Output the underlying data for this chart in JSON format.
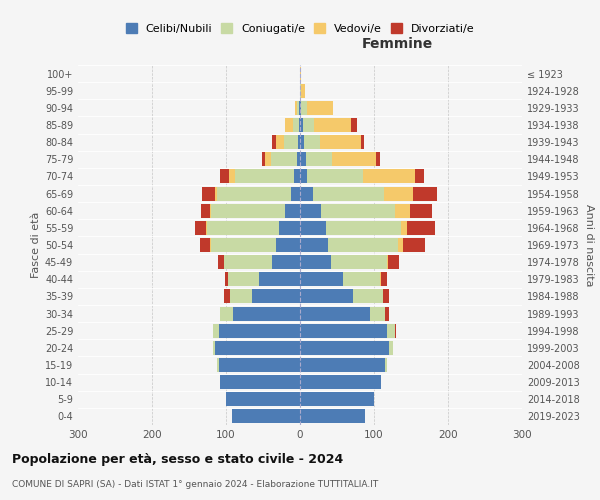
{
  "age_groups": [
    "0-4",
    "5-9",
    "10-14",
    "15-19",
    "20-24",
    "25-29",
    "30-34",
    "35-39",
    "40-44",
    "45-49",
    "50-54",
    "55-59",
    "60-64",
    "65-69",
    "70-74",
    "75-79",
    "80-84",
    "85-89",
    "90-94",
    "95-99",
    "100+"
  ],
  "birth_years": [
    "2019-2023",
    "2014-2018",
    "2009-2013",
    "2004-2008",
    "1999-2003",
    "1994-1998",
    "1989-1993",
    "1984-1988",
    "1979-1983",
    "1974-1978",
    "1969-1973",
    "1964-1968",
    "1959-1963",
    "1954-1958",
    "1949-1953",
    "1944-1948",
    "1939-1943",
    "1934-1938",
    "1929-1933",
    "1924-1928",
    "≤ 1923"
  ],
  "colors": {
    "celibi": "#4d7cb5",
    "coniugati": "#c8daa4",
    "vedovi": "#f5c96a",
    "divorziati": "#c0392b"
  },
  "males": {
    "celibi": [
      92,
      100,
      108,
      110,
      115,
      110,
      90,
      65,
      55,
      38,
      32,
      28,
      20,
      12,
      8,
      4,
      3,
      2,
      1,
      0,
      0
    ],
    "coniugati": [
      0,
      0,
      0,
      2,
      3,
      8,
      18,
      30,
      42,
      65,
      88,
      98,
      100,
      100,
      80,
      35,
      18,
      8,
      3,
      0,
      0
    ],
    "vedovi": [
      0,
      0,
      0,
      0,
      0,
      0,
      0,
      0,
      0,
      0,
      1,
      1,
      2,
      3,
      8,
      8,
      12,
      10,
      3,
      0,
      0
    ],
    "divorziati": [
      0,
      0,
      0,
      0,
      0,
      0,
      0,
      8,
      5,
      8,
      14,
      15,
      12,
      18,
      12,
      4,
      5,
      0,
      0,
      0,
      0
    ]
  },
  "females": {
    "celibi": [
      88,
      100,
      110,
      115,
      120,
      118,
      95,
      72,
      58,
      42,
      38,
      35,
      28,
      18,
      10,
      8,
      5,
      4,
      2,
      0,
      0
    ],
    "coniugati": [
      0,
      0,
      0,
      2,
      5,
      10,
      20,
      40,
      50,
      75,
      95,
      102,
      100,
      95,
      75,
      35,
      22,
      15,
      8,
      2,
      0
    ],
    "vedovi": [
      0,
      0,
      0,
      0,
      0,
      0,
      0,
      0,
      1,
      2,
      6,
      8,
      20,
      40,
      70,
      60,
      55,
      50,
      35,
      5,
      1
    ],
    "divorziati": [
      0,
      0,
      0,
      0,
      0,
      2,
      5,
      8,
      8,
      15,
      30,
      38,
      30,
      32,
      12,
      5,
      5,
      8,
      0,
      0,
      0
    ]
  },
  "title_main": "Popolazione per età, sesso e stato civile - 2024",
  "title_sub": "COMUNE DI SAPRI (SA) - Dati ISTAT 1° gennaio 2024 - Elaborazione TUTTITALIA.IT",
  "xlabel_right": "Femmine",
  "ylabel_left": "Fasce di età",
  "ylabel_right": "Anni di nascita",
  "legend_labels": [
    "Celibi/Nubili",
    "Coniugati/e",
    "Vedovi/e",
    "Divorziati/e"
  ],
  "xlim": 300,
  "background_color": "#f5f5f5",
  "grid_color": "#bbbbbb"
}
